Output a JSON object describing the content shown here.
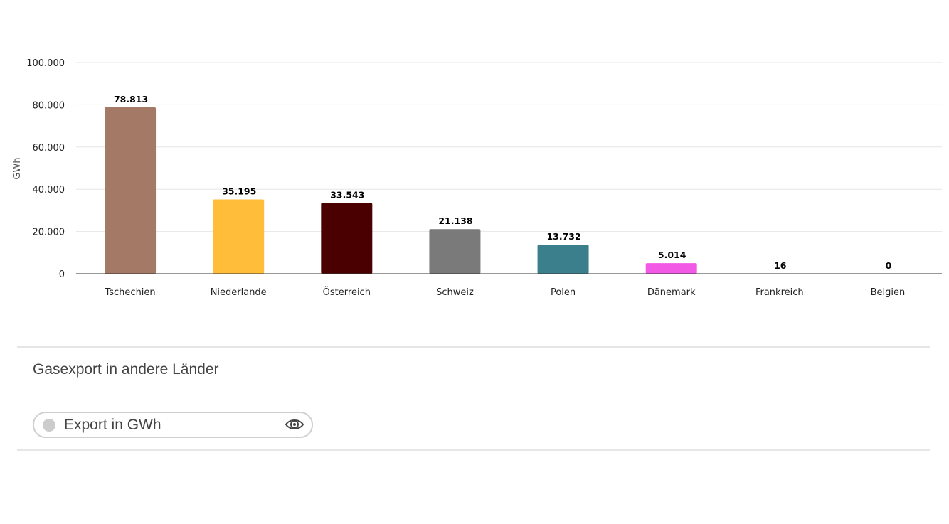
{
  "chart_data": {
    "type": "bar",
    "categories": [
      "Tschechien",
      "Niederlande",
      "Österreich",
      "Schweiz",
      "Polen",
      "Dänemark",
      "Frankreich",
      "Belgien"
    ],
    "values": [
      78813,
      35195,
      33543,
      21138,
      13732,
      5014,
      16,
      0
    ],
    "data_labels": [
      "78.813",
      "35.195",
      "33.543",
      "21.138",
      "13.732",
      "5.014",
      "16",
      "0"
    ],
    "colors": [
      "#a47a66",
      "#ffbd39",
      "#4a0000",
      "#7a7a7a",
      "#3c7f8c",
      "#f25ae6",
      "#a47a66",
      "#a47a66"
    ],
    "ylabel": "GWh",
    "ylim": [
      0,
      100000
    ],
    "yticks": [
      0,
      20000,
      40000,
      60000,
      80000,
      100000
    ],
    "ytick_labels": [
      "0",
      "20.000",
      "40.000",
      "60.000",
      "80.000",
      "100.000"
    ],
    "grid": true,
    "legend": "bottom-left"
  },
  "section": {
    "title": "Gasexport in andere Länder"
  },
  "legend": {
    "label": "Export in GWh",
    "dot_color": "#cccccc",
    "toggle_icon": "eye-icon"
  }
}
